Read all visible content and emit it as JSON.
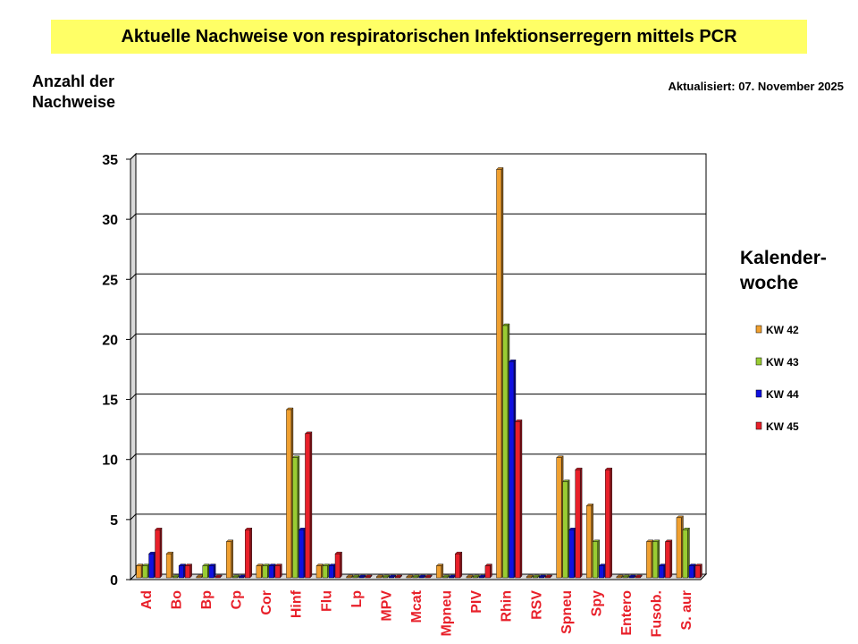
{
  "header": {
    "title": "Aktuelle Nachweise von respiratorischen Infektionserregern mittels PCR",
    "updated": "Aktualisiert:  07. November 2025"
  },
  "chart_data": {
    "type": "bar",
    "ylabel_line1": "Anzahl der",
    "ylabel_line2": "Nachweise",
    "legend_title_line1": "Kalender-",
    "legend_title_line2": "woche",
    "ylim": [
      0,
      35
    ],
    "yticks": [
      0,
      5,
      10,
      15,
      20,
      25,
      30,
      35
    ],
    "grid": true,
    "legend_position": "right",
    "categories": [
      "Ad",
      "Bo",
      "Bp",
      "Cp",
      "Cor",
      "Hinf",
      "Flu",
      "Lp",
      "MPV",
      "Mcat",
      "Mpneu",
      "PIV",
      "Rhin",
      "RSV",
      "Spneu",
      "Spy",
      "Entero",
      "Fusob.",
      "S. aur"
    ],
    "category_label_color": "#e8202a",
    "series": [
      {
        "name": "KW 42",
        "color": "#f0a030",
        "values": [
          1,
          2,
          0,
          3,
          1,
          14,
          1,
          0,
          0,
          0,
          1,
          0,
          34,
          0,
          10,
          6,
          0,
          3,
          5
        ]
      },
      {
        "name": "KW 43",
        "color": "#99cc33",
        "values": [
          1,
          0,
          1,
          0,
          1,
          10,
          1,
          0,
          0,
          0,
          0,
          0,
          21,
          0,
          8,
          3,
          0,
          3,
          4
        ]
      },
      {
        "name": "KW 44",
        "color": "#1010e0",
        "values": [
          2,
          1,
          1,
          0,
          1,
          4,
          1,
          0,
          0,
          0,
          0,
          0,
          18,
          0,
          4,
          1,
          0,
          1,
          1
        ]
      },
      {
        "name": "KW 45",
        "color": "#e8202a",
        "values": [
          4,
          1,
          0,
          4,
          1,
          12,
          2,
          0,
          0,
          0,
          2,
          1,
          13,
          0,
          9,
          9,
          0,
          3,
          1
        ]
      }
    ]
  }
}
